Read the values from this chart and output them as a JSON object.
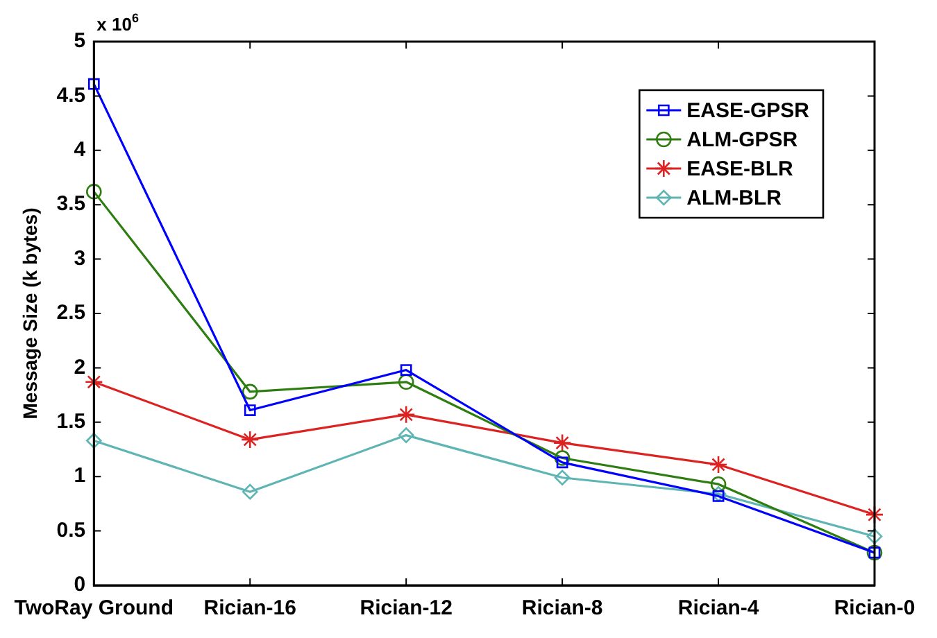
{
  "chart_data": {
    "type": "line",
    "ylabel": "Message Size (k bytes)",
    "annotations": [
      "x 10$^{6}$"
    ],
    "categories": [
      "TwoRay Ground",
      "Rician-16",
      "Rician-12",
      "Rician-8",
      "Rician-4",
      "Rician-0"
    ],
    "series": [
      {
        "name": "EASE-GPSR",
        "color": "#0000ff",
        "marker": "square",
        "values": [
          4.61,
          1.61,
          1.98,
          1.13,
          0.82,
          0.3
        ]
      },
      {
        "name": "ALM-GPSR",
        "color": "#2e7d10",
        "marker": "circle",
        "values": [
          3.62,
          1.78,
          1.87,
          1.17,
          0.93,
          0.3
        ]
      },
      {
        "name": "EASE-BLR",
        "color": "#dd2222",
        "marker": "cross",
        "values": [
          1.87,
          1.34,
          1.57,
          1.31,
          1.11,
          0.65
        ]
      },
      {
        "name": "ALM-BLR",
        "color": "#5fb4b4",
        "marker": "diamond",
        "values": [
          1.33,
          0.86,
          1.38,
          0.99,
          0.84,
          0.45
        ]
      }
    ],
    "ylim": [
      0,
      5
    ],
    "yticks": [
      0,
      0.5,
      1,
      1.5,
      2,
      2.5,
      3,
      3.5,
      4,
      4.5,
      5
    ],
    "grid": false,
    "legend": "top right",
    "line_style": "solid"
  }
}
